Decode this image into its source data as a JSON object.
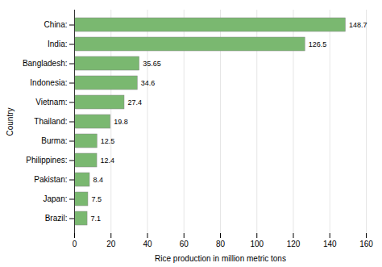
{
  "chart_data": {
    "type": "bar",
    "orientation": "horizontal",
    "categories": [
      "China:",
      "India:",
      "Bangladesh:",
      "Indonesia:",
      "Vietnam:",
      "Thailand:",
      "Burma:",
      "Philippines:",
      "Pakistan:",
      "Japan:",
      "Brazil:"
    ],
    "values": [
      148.7,
      126.5,
      35.65,
      34.6,
      27.4,
      19.8,
      12.5,
      12.4,
      8.4,
      7.5,
      7.1
    ],
    "color": "#7ab870",
    "xlabel": "Rice production in million metric tons",
    "ylabel": "Country",
    "xlim": [
      0,
      160
    ],
    "xticks": [
      0,
      20,
      40,
      60,
      80,
      100,
      120,
      140,
      160
    ],
    "grid": true,
    "data_labels": true
  }
}
